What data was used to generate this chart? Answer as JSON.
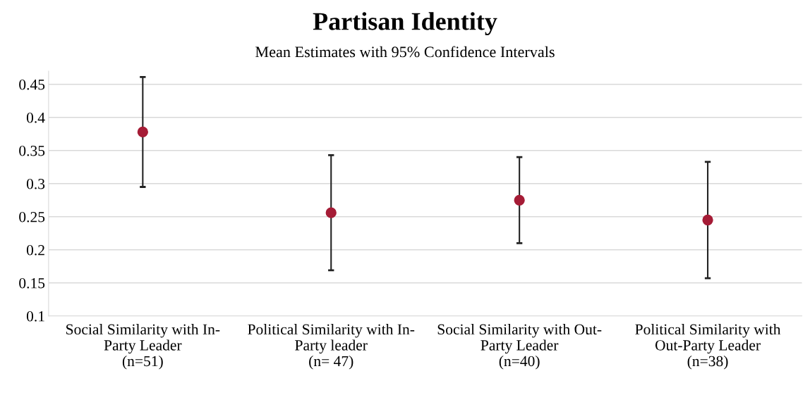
{
  "chart_data": {
    "type": "scatter",
    "title": "Partisan Identity",
    "subtitle": "Mean Estimates with 95% Confidence Intervals",
    "categories": [
      "Social Similarity with In-\nParty Leader\n(n=51)",
      "Political Similarity with In-\nParty leader\n(n= 47)",
      "Social Similarity with Out-\nParty Leader\n(n=40)",
      "Political Similarity with\nOut-Party Leader\n(n=38)"
    ],
    "series": [
      {
        "color": "#a51c36",
        "values": [
          0.378,
          0.256,
          0.275,
          0.245
        ],
        "errors": [
          0.083,
          0.087,
          0.065,
          0.088
        ]
      }
    ],
    "ylim": [
      0.1,
      0.47
    ],
    "yticks": [
      0.1,
      0.15,
      0.2,
      0.25,
      0.3,
      0.35,
      0.4,
      0.45
    ],
    "grid": "y",
    "marker": "circle",
    "legend": false
  }
}
